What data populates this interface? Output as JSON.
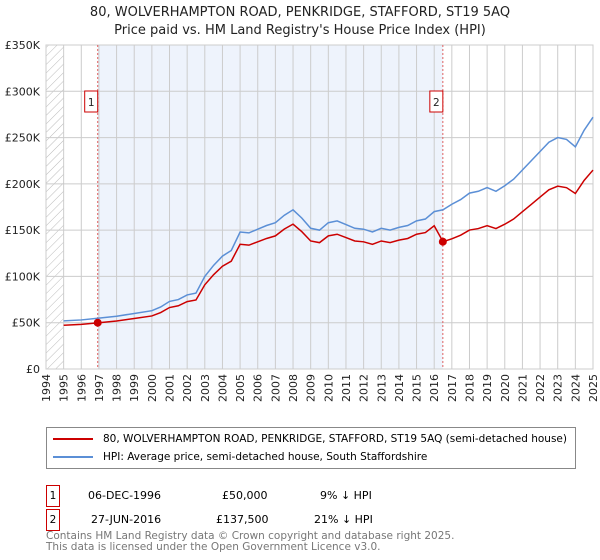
{
  "chart_data": {
    "type": "line",
    "title": "80, WOLVERHAMPTON ROAD, PENKRIDGE, STAFFORD, ST19 5AQ",
    "subtitle": "Price paid vs. HM Land Registry's House Price Index (HPI)",
    "xlim": [
      1994,
      2025
    ],
    "ylim": [
      0,
      350000
    ],
    "x_ticks": [
      "1994",
      "1995",
      "1996",
      "1997",
      "1998",
      "1999",
      "2000",
      "2001",
      "2002",
      "2003",
      "2004",
      "2005",
      "2006",
      "2007",
      "2008",
      "2009",
      "2010",
      "2011",
      "2012",
      "2013",
      "2014",
      "2015",
      "2016",
      "2017",
      "2018",
      "2019",
      "2020",
      "2021",
      "2022",
      "2023",
      "2024",
      "2025"
    ],
    "y_ticks": [
      {
        "v": 0,
        "label": "£0"
      },
      {
        "v": 50000,
        "label": "£50K"
      },
      {
        "v": 100000,
        "label": "£100K"
      },
      {
        "v": 150000,
        "label": "£150K"
      },
      {
        "v": 200000,
        "label": "£200K"
      },
      {
        "v": 250000,
        "label": "£250K"
      },
      {
        "v": 300000,
        "label": "£300K"
      },
      {
        "v": 350000,
        "label": "£350K"
      }
    ],
    "grid": true,
    "hpi_x": [
      1995,
      1996,
      1997,
      1998,
      1999,
      2000,
      2000.5,
      2001,
      2001.5,
      2002,
      2002.5,
      2003,
      2003.5,
      2004,
      2004.5,
      2005,
      2005.5,
      2006,
      2006.5,
      2007,
      2007.5,
      2008,
      2008.5,
      2009,
      2009.5,
      2010,
      2010.5,
      2011,
      2011.5,
      2012,
      2012.5,
      2013,
      2013.5,
      2014,
      2014.5,
      2015,
      2015.5,
      2016,
      2016.5,
      2017,
      2017.5,
      2018,
      2018.5,
      2019,
      2019.5,
      2020,
      2020.5,
      2021,
      2021.5,
      2022,
      2022.5,
      2023,
      2023.5,
      2024,
      2024.5,
      2025
    ],
    "series": [
      {
        "name": "80, WOLVERHAMPTON ROAD, PENKRIDGE, STAFFORD, ST19 5AQ (semi-detached house)",
        "color": "#cc0000",
        "values": [
          47300,
          48200,
          50000,
          51900,
          54600,
          57300,
          61000,
          66400,
          68300,
          72800,
          74600,
          91000,
          101900,
          111000,
          116500,
          134700,
          133800,
          137400,
          141000,
          143800,
          151100,
          156500,
          148300,
          138300,
          136500,
          143800,
          145600,
          142000,
          138300,
          137400,
          134700,
          138300,
          136500,
          139200,
          141000,
          145600,
          147400,
          154700,
          137500,
          140600,
          144600,
          150100,
          151700,
          154800,
          151700,
          156400,
          162000,
          169900,
          177800,
          185700,
          193600,
          197500,
          195900,
          189600,
          203800,
          214900
        ]
      },
      {
        "name": "HPI: Average price, semi-detached house, South Staffordshire",
        "color": "#5b8fd6",
        "values": [
          52000,
          53000,
          55000,
          57000,
          60000,
          63000,
          67000,
          73000,
          75000,
          80000,
          82000,
          100000,
          112000,
          122000,
          128000,
          148000,
          147000,
          151000,
          155000,
          158000,
          166000,
          172000,
          163000,
          152000,
          150000,
          158000,
          160000,
          156000,
          152000,
          151000,
          148000,
          152000,
          150000,
          153000,
          155000,
          160000,
          162000,
          170000,
          172000,
          178000,
          183000,
          190000,
          192000,
          196000,
          192000,
          198000,
          205000,
          215000,
          225000,
          235000,
          245000,
          250000,
          248000,
          240000,
          258000,
          272000
        ]
      }
    ],
    "sales": [
      {
        "id": "1",
        "x": 1996.93,
        "price": 50000,
        "date": "06-DEC-1996",
        "price_label": "£50,000",
        "delta": "9% ↓ HPI"
      },
      {
        "id": "2",
        "x": 2016.49,
        "price": 137500,
        "date": "27-JUN-2016",
        "price_label": "£137,500",
        "delta": "21% ↓ HPI"
      }
    ],
    "legend": [
      "80, WOLVERHAMPTON ROAD, PENKRIDGE, STAFFORD, ST19 5AQ (semi-detached house)",
      "HPI: Average price, semi-detached house, South Staffordshire"
    ],
    "legend_placement": "bottom"
  },
  "footer": [
    "Contains HM Land Registry data © Crown copyright and database right 2025.",
    "This data is licensed under the Open Government Licence v3.0."
  ]
}
